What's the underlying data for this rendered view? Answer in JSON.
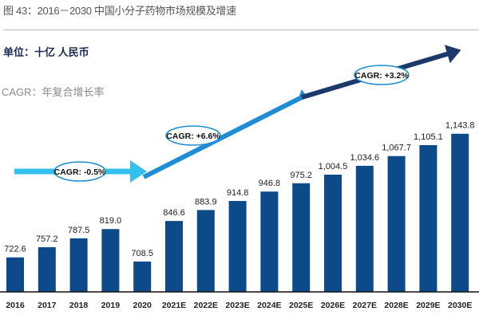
{
  "title": "图 43：2016－2030 中国小分子药物市场规模及增速",
  "unit_label": "单位：十亿 人民币",
  "note": "CAGR：年复合增长率",
  "colors": {
    "bar": "#0c4a8a",
    "arrow1": "#33c0ee",
    "arrow2": "#1f8dd6",
    "arrow3": "#1b3a6b"
  },
  "chart_data": {
    "type": "bar",
    "categories": [
      "2016",
      "2017",
      "2018",
      "2019",
      "2020",
      "2021E",
      "2022E",
      "2023E",
      "2024E",
      "2025E",
      "2026E",
      "2027E",
      "2028E",
      "2029E",
      "2030E"
    ],
    "values": [
      722.6,
      757.2,
      787.5,
      819.0,
      708.5,
      846.6,
      883.9,
      914.8,
      946.8,
      975.2,
      1004.5,
      1034.6,
      1067.7,
      1105.1,
      1143.8
    ],
    "value_labels": [
      "722.6",
      "757.2",
      "787.5",
      "819.0",
      "708.5",
      "846.6",
      "883.9",
      "914.8",
      "946.8",
      "975.2",
      "1,004.5",
      "1,034.6",
      "1,067.7",
      "1,105.1",
      "1,143.8"
    ],
    "ylim": [
      605,
      1200
    ],
    "grid": false,
    "annotations": [
      {
        "label": "CAGR: -0.5%",
        "from": "2016",
        "to": "2020"
      },
      {
        "label": "CAGR: +6.6%",
        "from": "2020",
        "to": "2025E"
      },
      {
        "label": "CAGR: +3.2%",
        "from": "2025E",
        "to": "2030E"
      }
    ]
  }
}
